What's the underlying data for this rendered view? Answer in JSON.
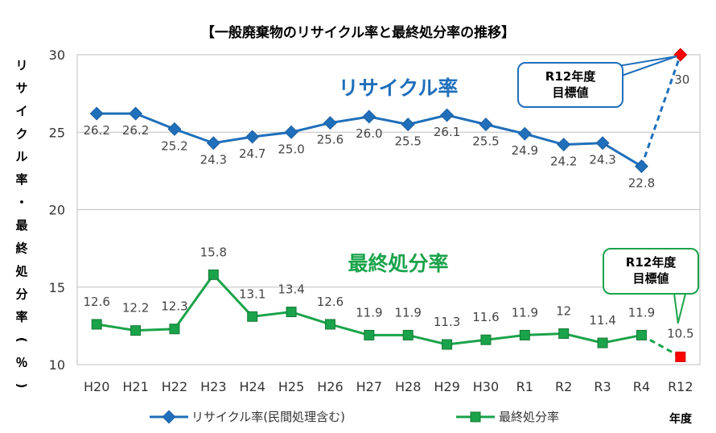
{
  "chart_data": {
    "type": "line",
    "title": "【一般廃棄物のリサイクル率と最終処分率の推移】",
    "ylabel": "リサイクル率・最終処分率（％）",
    "xlabel": "年度",
    "categories": [
      "H20",
      "H21",
      "H22",
      "H23",
      "H24",
      "H25",
      "H26",
      "H27",
      "H28",
      "H29",
      "H30",
      "R1",
      "R2",
      "R3",
      "R4",
      "R12"
    ],
    "ylim": [
      10,
      30
    ],
    "yticks": [
      "10",
      "15",
      "20",
      "25",
      "30"
    ],
    "grid": true,
    "legend_position": "bottom",
    "series": [
      {
        "name": "リサイクル率(民間処理含む)",
        "overlay_label": "リサイクル率",
        "color": "#1f6fba",
        "values": [
          26.2,
          26.2,
          25.2,
          24.3,
          24.7,
          25.0,
          25.6,
          26.0,
          25.5,
          26.1,
          25.5,
          24.9,
          24.2,
          24.3,
          22.8,
          30
        ],
        "labels": [
          "26.2",
          "26.2",
          "25.2",
          "24.3",
          "24.7",
          "25.0",
          "25.6",
          "26.0",
          "25.5",
          "26.1",
          "25.5",
          "24.9",
          "24.2",
          "24.3",
          "22.8",
          "30"
        ],
        "target_color": "#ff0000",
        "target_callout": [
          "R12年度",
          "目標値"
        ]
      },
      {
        "name": "最終処分率",
        "overlay_label": "最終処分率",
        "color": "#1aa34a",
        "values": [
          12.6,
          12.2,
          12.3,
          15.8,
          13.1,
          13.4,
          12.6,
          11.9,
          11.9,
          11.3,
          11.6,
          11.9,
          12,
          11.4,
          11.9,
          10.5
        ],
        "labels": [
          "12.6",
          "12.2",
          "12.3",
          "15.8",
          "13.1",
          "13.4",
          "12.6",
          "11.9",
          "11.9",
          "11.3",
          "11.6",
          "11.9",
          "12",
          "11.4",
          "11.9",
          "10.5"
        ],
        "target_color": "#ff0000",
        "target_callout": [
          "R12年度",
          "目標値"
        ]
      }
    ]
  }
}
